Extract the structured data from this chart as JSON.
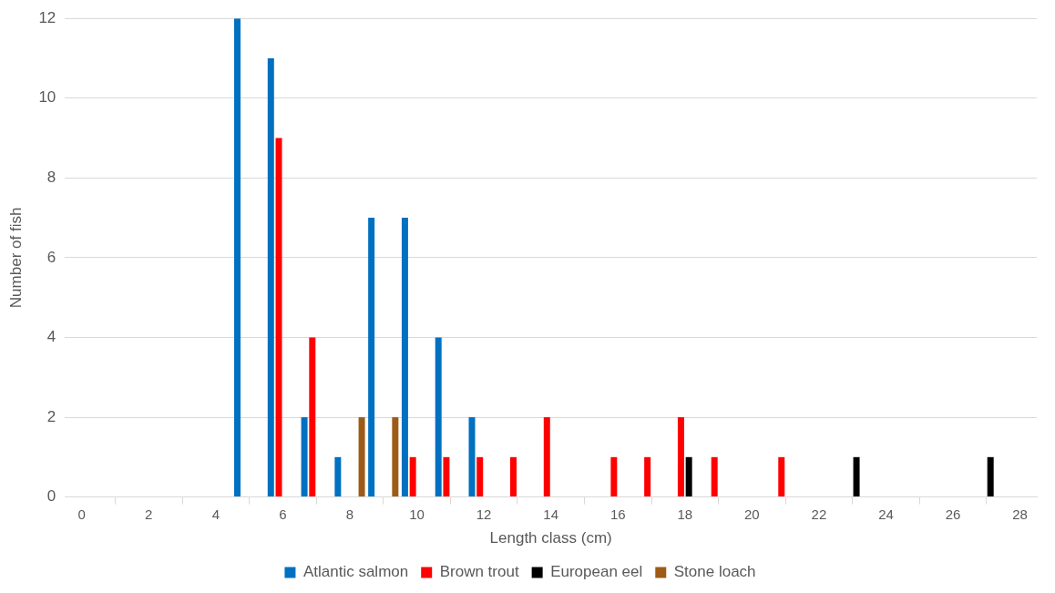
{
  "chart_data": {
    "type": "bar",
    "xlabel": "Length class (cm)",
    "ylabel": "Number of fish",
    "x": [
      0,
      1,
      2,
      3,
      4,
      5,
      6,
      7,
      8,
      9,
      10,
      11,
      12,
      13,
      14,
      15,
      16,
      17,
      18,
      19,
      20,
      21,
      22,
      23,
      24,
      25,
      26,
      27,
      28
    ],
    "xlim": [
      -0.5,
      28.5
    ],
    "xticks": [
      0,
      2,
      4,
      6,
      8,
      10,
      12,
      14,
      16,
      18,
      20,
      22,
      24,
      26,
      28
    ],
    "series": [
      {
        "name": "Atlantic salmon",
        "color": "#0070c0",
        "values": [
          0,
          0,
          0,
          0,
          0,
          12,
          11,
          2,
          1,
          7,
          7,
          4,
          2,
          0,
          0,
          0,
          0,
          0,
          0,
          0,
          0,
          0,
          0,
          0,
          0,
          0,
          0,
          0,
          0
        ]
      },
      {
        "name": "Brown trout",
        "color": "#ff0000",
        "values": [
          0,
          0,
          0,
          0,
          0,
          0,
          9,
          4,
          0,
          0,
          1,
          1,
          1,
          1,
          2,
          0,
          1,
          1,
          2,
          1,
          0,
          1,
          0,
          0,
          0,
          0,
          0,
          0,
          0
        ]
      },
      {
        "name": "European eel",
        "color": "#000000",
        "values": [
          0,
          0,
          0,
          0,
          0,
          0,
          0,
          0,
          0,
          0,
          0,
          0,
          0,
          0,
          0,
          0,
          0,
          0,
          1,
          0,
          0,
          0,
          0,
          1,
          0,
          0,
          0,
          1,
          0
        ]
      },
      {
        "name": "Stone loach",
        "color": "#9c5b16",
        "values": [
          0,
          0,
          0,
          0,
          0,
          0,
          0,
          0,
          2,
          2,
          0,
          0,
          0,
          0,
          0,
          0,
          0,
          0,
          0,
          0,
          0,
          0,
          0,
          0,
          0,
          0,
          0,
          0,
          0
        ]
      }
    ],
    "ylim": [
      0,
      12
    ],
    "yticks": [
      0,
      2,
      4,
      6,
      8,
      10,
      12
    ],
    "grid": "y",
    "legend": "bottom"
  }
}
